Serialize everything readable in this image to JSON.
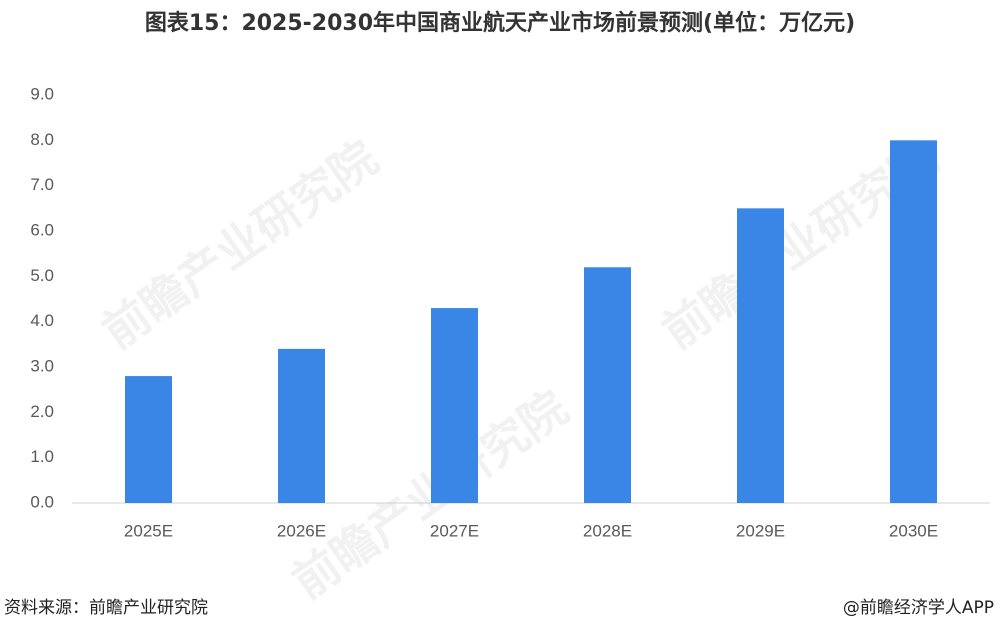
{
  "chart_data": {
    "type": "bar",
    "title": "图表15：2025-2030年中国商业航天产业市场前景预测(单位：万亿元)",
    "categories": [
      "2025E",
      "2026E",
      "2027E",
      "2028E",
      "2029E",
      "2030E"
    ],
    "values": [
      2.8,
      3.4,
      4.3,
      5.2,
      6.5,
      8.0
    ],
    "color": "#3a86e6",
    "ylim": [
      0,
      9
    ],
    "yticks": [
      {
        "value": 0,
        "label": "0.0"
      },
      {
        "value": 1,
        "label": "1.0"
      },
      {
        "value": 2,
        "label": "2.0"
      },
      {
        "value": 3,
        "label": "3.0"
      },
      {
        "value": 4,
        "label": "4.0"
      },
      {
        "value": 5,
        "label": "5.0"
      },
      {
        "value": 6,
        "label": "6.0"
      },
      {
        "value": 7,
        "label": "7.0"
      },
      {
        "value": 8,
        "label": "8.0"
      },
      {
        "value": 9,
        "label": "9.0"
      }
    ],
    "grid": false,
    "source": "资料来源：前瞻产业研究院",
    "credit": "@前瞻经济学人APP",
    "watermark": "前瞻产业研究院"
  }
}
